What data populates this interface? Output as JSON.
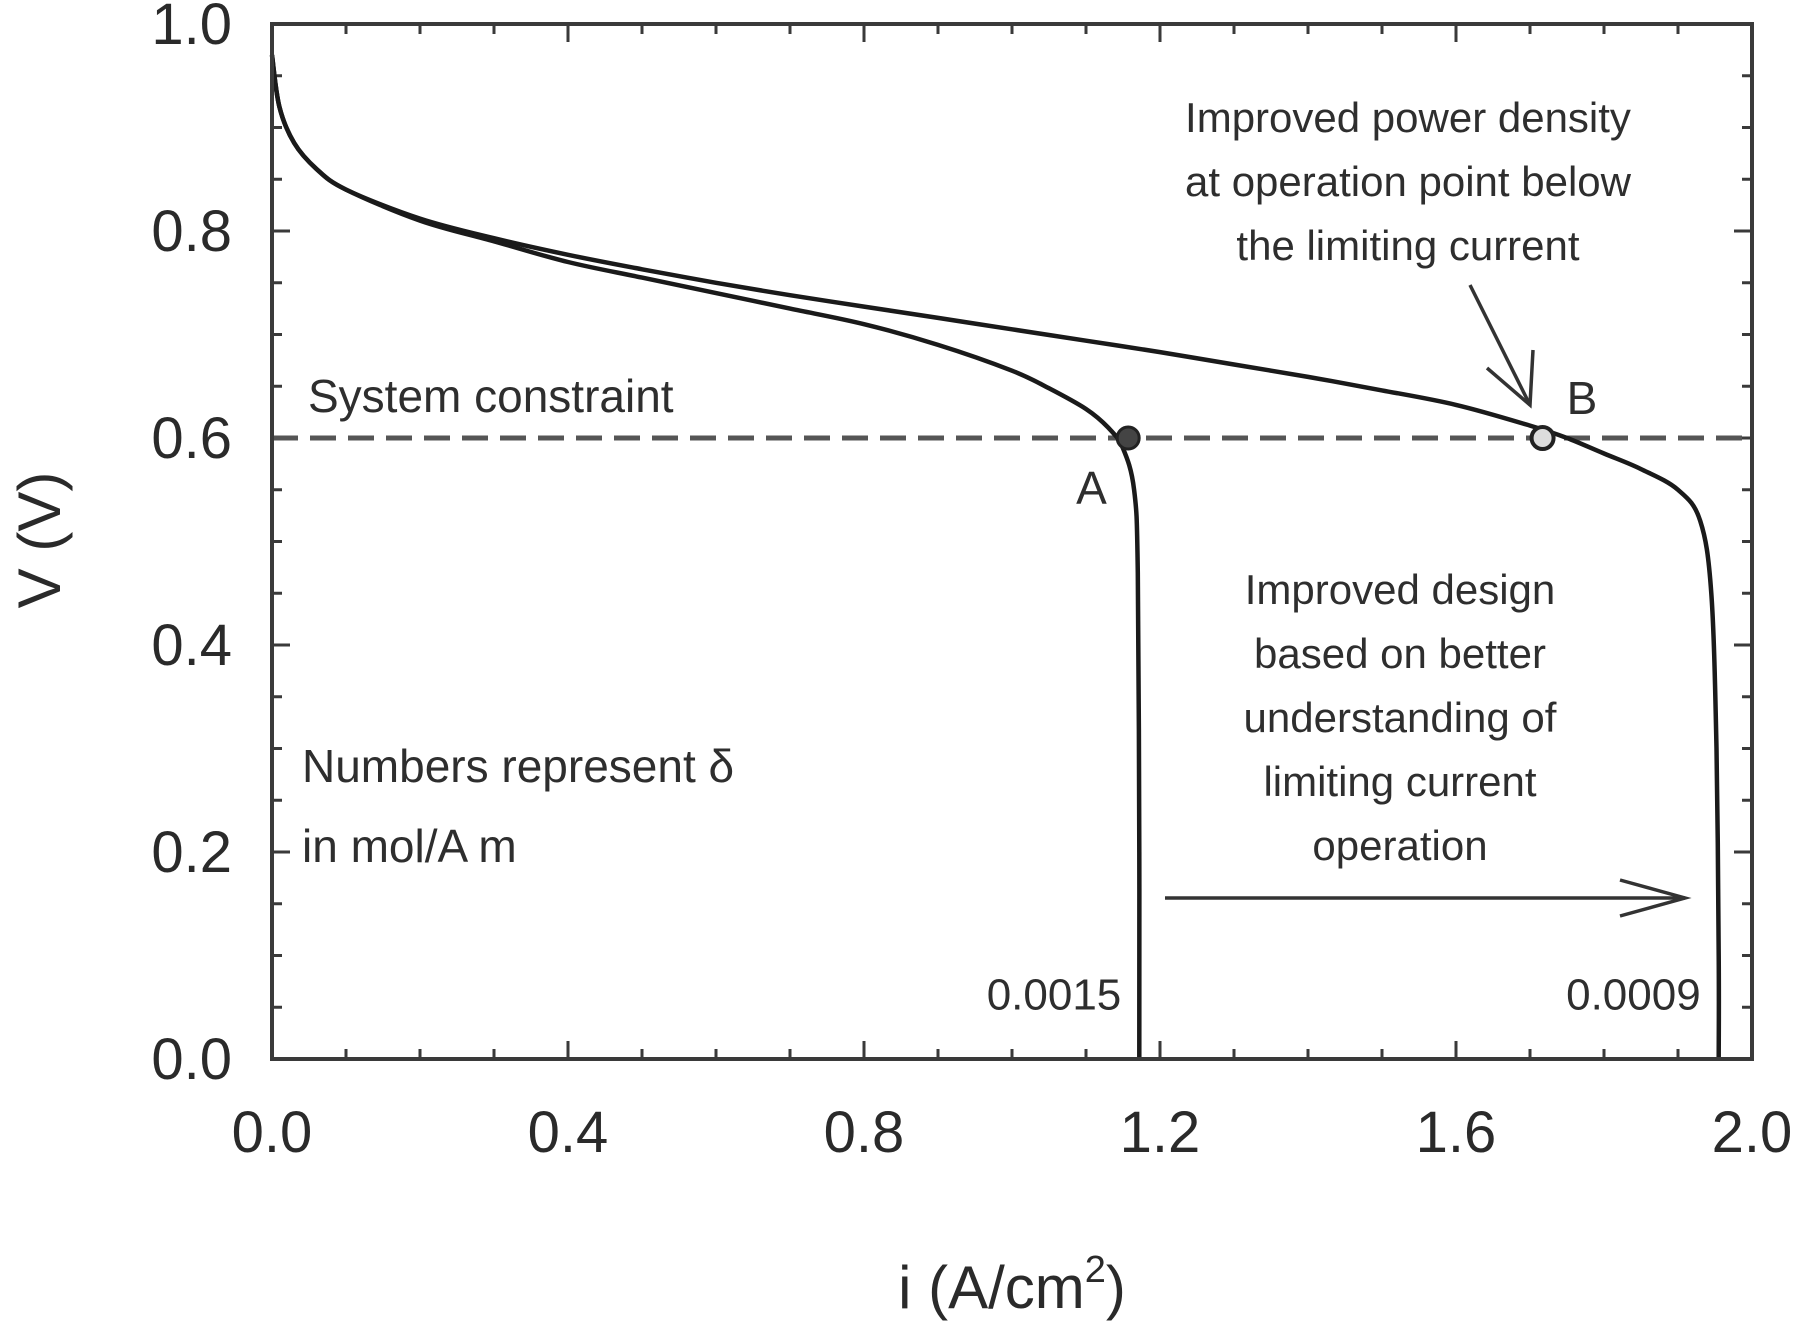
{
  "chart_data": {
    "type": "line",
    "xlabel": "i (A/cm",
    "xlabel_sup": "2",
    "xlabel_close": ")",
    "ylabel": "V (V)",
    "xlim": [
      0.0,
      2.0
    ],
    "ylim": [
      0.0,
      1.0
    ],
    "xticks": [
      "0.0",
      "0.4",
      "0.8",
      "1.2",
      "1.6",
      "2.0"
    ],
    "yticks": [
      "0.0",
      "0.2",
      "0.4",
      "0.6",
      "0.8",
      "1.0"
    ],
    "grid": false,
    "series": [
      {
        "name": "0.0015",
        "x": [
          0.0,
          0.01,
          0.03,
          0.06,
          0.1,
          0.2,
          0.3,
          0.4,
          0.5,
          0.6,
          0.7,
          0.8,
          0.9,
          1.0,
          1.05,
          1.1,
          1.13,
          1.15,
          1.165,
          1.17,
          1.172,
          1.172
        ],
        "y": [
          0.97,
          0.92,
          0.885,
          0.86,
          0.84,
          0.81,
          0.79,
          0.77,
          0.755,
          0.74,
          0.725,
          0.71,
          0.69,
          0.665,
          0.648,
          0.628,
          0.61,
          0.59,
          0.55,
          0.47,
          0.2,
          0.0
        ]
      },
      {
        "name": "0.0009",
        "x": [
          0.0,
          0.01,
          0.03,
          0.06,
          0.1,
          0.2,
          0.3,
          0.4,
          0.5,
          0.6,
          0.7,
          0.8,
          0.9,
          1.0,
          1.1,
          1.2,
          1.3,
          1.4,
          1.5,
          1.6,
          1.7,
          1.75,
          1.8,
          1.85,
          1.9,
          1.93,
          1.945,
          1.952,
          1.955,
          1.955
        ],
        "y": [
          0.97,
          0.92,
          0.885,
          0.86,
          0.84,
          0.812,
          0.793,
          0.777,
          0.763,
          0.75,
          0.738,
          0.727,
          0.716,
          0.705,
          0.694,
          0.683,
          0.671,
          0.659,
          0.646,
          0.632,
          0.612,
          0.6,
          0.585,
          0.57,
          0.55,
          0.52,
          0.45,
          0.3,
          0.1,
          0.0
        ]
      }
    ],
    "constraint": {
      "label": "System constraint",
      "y": 0.6
    },
    "points": [
      {
        "label": "A",
        "x": 1.157,
        "y": 0.6
      },
      {
        "label": "B",
        "x": 1.717,
        "y": 0.6
      }
    ],
    "annotations": {
      "power_density": [
        "Improved power density",
        "at operation point below",
        "the limiting current"
      ],
      "design": [
        "Improved design",
        "based on better",
        "understanding of",
        "limiting current",
        "operation"
      ],
      "numbers_note": [
        "Numbers represent δ",
        "in mol/A m"
      ]
    }
  }
}
